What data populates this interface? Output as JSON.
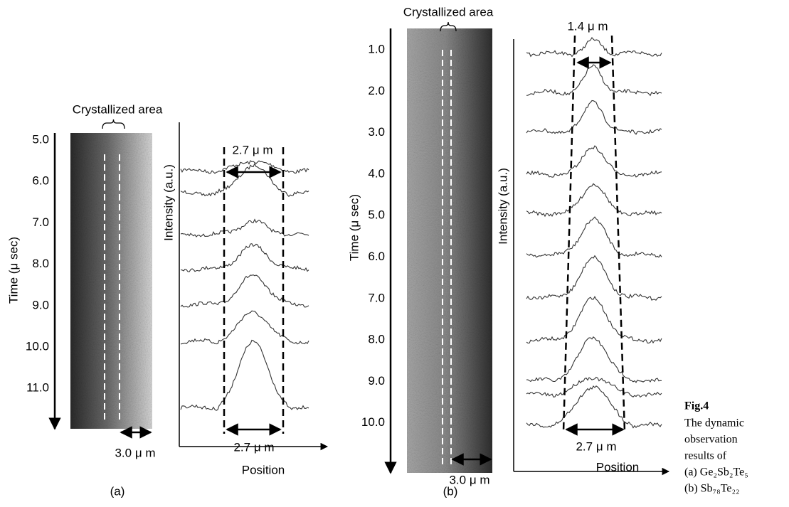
{
  "panel_a": {
    "annotation": "Crystallized area",
    "time_labels": [
      "5.0",
      "6.0",
      "7.0",
      "8.0",
      "9.0",
      "10.0",
      "11.0"
    ],
    "time_axis_label": "Time (μ sec)",
    "intensity_axis_label": "Intensity (a.u.)",
    "width_top": "2.7 μ m",
    "width_bottom": "2.7 μ m",
    "scale": "3.0 μ m",
    "position_axis_label": "Position",
    "label": "(a)"
  },
  "panel_b": {
    "annotation": "Crystallized area",
    "time_labels": [
      "1.0",
      "2.0",
      "3.0",
      "4.0",
      "5.0",
      "6.0",
      "7.0",
      "8.0",
      "9.0",
      "10.0"
    ],
    "time_axis_label": "Time (μ sec)",
    "intensity_axis_label": "Intensity (a.u.)",
    "width_top": "1.4 μ m",
    "width_bottom": "2.7 μ m",
    "scale": "3.0 μ m",
    "position_axis_label": "Position",
    "label": "(b)"
  },
  "caption": {
    "title": "Fig.4",
    "lines": [
      "The dynamic",
      "observation",
      "results of"
    ],
    "items": [
      "(a)  Ge₂Sb₂Te₅",
      "(b)  Sb₇₈Te₂₂"
    ]
  }
}
